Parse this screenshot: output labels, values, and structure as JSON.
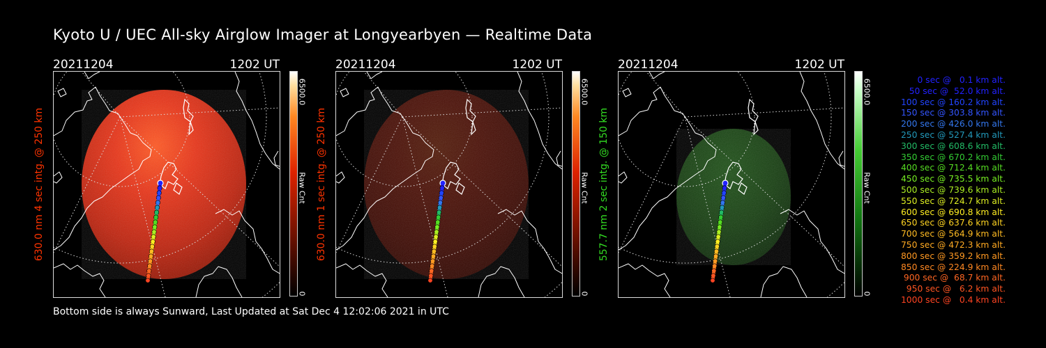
{
  "header": {
    "title": "Kyoto U / UEC All-sky Airglow Imager at Longyearbyen — Realtime Data"
  },
  "footer": {
    "text": "Bottom side is always Sunward, Last Updated at Sat Dec  4 12:02:06 2021 in UTC"
  },
  "panels": [
    {
      "date": "20211204",
      "time": "1202 UT",
      "ylabel": "630.0 nm 4 sec intg. @ 250 km",
      "label_color": "#ff3300",
      "glow": "red",
      "brightness": 1.0,
      "colorbar": {
        "max": "6500.0",
        "min": "0",
        "unit": "Raw Cnt"
      }
    },
    {
      "date": "20211204",
      "time": "1202 UT",
      "ylabel": "630.0 nm 1 sec intg. @ 250 km",
      "label_color": "#ff3300",
      "glow": "red",
      "brightness": 0.33,
      "colorbar": {
        "max": "6500.0",
        "min": "0",
        "unit": "Raw Cnt"
      }
    },
    {
      "date": "20211204",
      "time": "1202 UT",
      "ylabel": "557.7 nm 2 sec intg. @ 150 km",
      "label_color": "#33dd22",
      "glow": "green",
      "brightness": 0.3,
      "colorbar": {
        "max": "6500.0",
        "min": "0",
        "unit": "Raw Cnt"
      }
    }
  ],
  "legend": [
    {
      "text": "0 sec @   0.1 km alt.",
      "color": "#2222ff"
    },
    {
      "text": "50 sec @  52.0 km alt.",
      "color": "#2222ff"
    },
    {
      "text": "100 sec @ 160.2 km alt.",
      "color": "#2244ff"
    },
    {
      "text": "150 sec @ 303.8 km alt.",
      "color": "#3355ff"
    },
    {
      "text": "200 sec @ 426.0 km alt.",
      "color": "#3377ee"
    },
    {
      "text": "250 sec @ 527.4 km alt.",
      "color": "#2299bb"
    },
    {
      "text": "300 sec @ 608.6 km alt.",
      "color": "#22bb66"
    },
    {
      "text": "350 sec @ 670.2 km alt.",
      "color": "#33cc33"
    },
    {
      "text": "400 sec @ 712.4 km alt.",
      "color": "#55dd22"
    },
    {
      "text": "450 sec @ 735.5 km alt.",
      "color": "#77ee22"
    },
    {
      "text": "500 sec @ 739.6 km alt.",
      "color": "#aaee22"
    },
    {
      "text": "550 sec @ 724.7 km alt.",
      "color": "#ddee22"
    },
    {
      "text": "600 sec @ 690.8 km alt.",
      "color": "#ffee22"
    },
    {
      "text": "650 sec @ 637.6 km alt.",
      "color": "#ffd422"
    },
    {
      "text": "700 sec @ 564.9 km alt.",
      "color": "#ffbb22"
    },
    {
      "text": "750 sec @ 472.3 km alt.",
      "color": "#ffaa22"
    },
    {
      "text": "800 sec @ 359.2 km alt.",
      "color": "#ff9922"
    },
    {
      "text": "850 sec @ 224.9 km alt.",
      "color": "#ff8822"
    },
    {
      "text": "900 sec @  68.7 km alt.",
      "color": "#ff6622"
    },
    {
      "text": "950 sec @   6.2 km alt.",
      "color": "#ff5522"
    },
    {
      "text": "1000 sec @   0.4 km alt.",
      "color": "#ff4422"
    }
  ]
}
